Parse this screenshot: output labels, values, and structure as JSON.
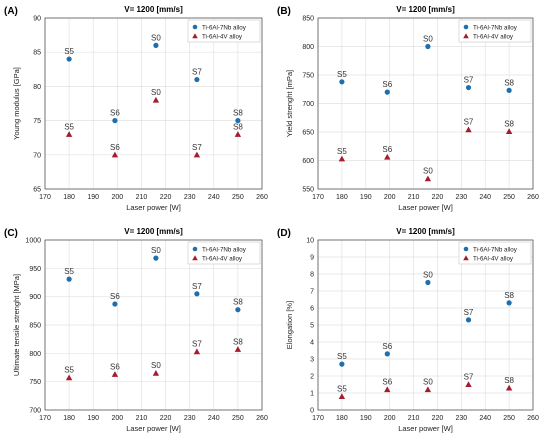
{
  "colors": {
    "nb_series": "#1f6fae",
    "v_series": "#a51c2c",
    "grid": "#e2e2e2",
    "axis": "#555555",
    "text": "#222222"
  },
  "chart_data": [
    {
      "panel_label": "(A)",
      "type": "scatter",
      "title": "V= 1200 [mm/s]",
      "xlabel": "Laser power [W]",
      "ylabel": "Young modulus [GPa]",
      "xlim": [
        170,
        260
      ],
      "ylim": [
        65,
        90
      ],
      "xticks": [
        170,
        180,
        190,
        200,
        210,
        220,
        230,
        240,
        250,
        260
      ],
      "yticks": [
        65,
        70,
        75,
        80,
        85,
        90
      ],
      "grid": true,
      "legend": "top-right",
      "series": [
        {
          "name": "Ti-6Al-7Nb alloy",
          "marker": "circle",
          "points": [
            {
              "x": 180,
              "y": 84,
              "label": "S5"
            },
            {
              "x": 199,
              "y": 75,
              "label": "S6"
            },
            {
              "x": 216,
              "y": 86,
              "label": "S0"
            },
            {
              "x": 233,
              "y": 81,
              "label": "S7"
            },
            {
              "x": 250,
              "y": 75,
              "label": "S8"
            }
          ]
        },
        {
          "name": "Ti-6Al-4V alloy",
          "marker": "triangle",
          "points": [
            {
              "x": 180,
              "y": 73,
              "label": "S5"
            },
            {
              "x": 199,
              "y": 70,
              "label": "S6"
            },
            {
              "x": 216,
              "y": 78,
              "label": "S0"
            },
            {
              "x": 233,
              "y": 70,
              "label": "S7"
            },
            {
              "x": 250,
              "y": 73,
              "label": "S8"
            }
          ]
        }
      ]
    },
    {
      "panel_label": "(B)",
      "type": "scatter",
      "title": "V= 1200 [mm/s]",
      "xlabel": "Laser power [W]",
      "ylabel": "Yield strenght [mPa]",
      "xlim": [
        170,
        260
      ],
      "ylim": [
        550,
        850
      ],
      "xticks": [
        170,
        180,
        190,
        200,
        210,
        220,
        230,
        240,
        250,
        260
      ],
      "yticks": [
        550,
        600,
        650,
        700,
        750,
        800,
        850
      ],
      "grid": true,
      "legend": "top-right",
      "series": [
        {
          "name": "Ti-6Al-7Nb alloy",
          "marker": "circle",
          "points": [
            {
              "x": 180,
              "y": 738,
              "label": "S5"
            },
            {
              "x": 199,
              "y": 720,
              "label": "S6"
            },
            {
              "x": 216,
              "y": 800,
              "label": "S0"
            },
            {
              "x": 233,
              "y": 728,
              "label": "S7"
            },
            {
              "x": 250,
              "y": 723,
              "label": "S8"
            }
          ]
        },
        {
          "name": "Ti-6Al-4V alloy",
          "marker": "triangle",
          "points": [
            {
              "x": 180,
              "y": 603,
              "label": "S5"
            },
            {
              "x": 199,
              "y": 606,
              "label": "S6"
            },
            {
              "x": 216,
              "y": 568,
              "label": "S0"
            },
            {
              "x": 233,
              "y": 654,
              "label": "S7"
            },
            {
              "x": 250,
              "y": 651,
              "label": "S8"
            }
          ]
        }
      ]
    },
    {
      "panel_label": "(C)",
      "type": "scatter",
      "title": "V= 1200 [mm/s]",
      "xlabel": "Laser power [W]",
      "ylabel": "Ultimate tensile strenght [MPa]",
      "xlim": [
        170,
        260
      ],
      "ylim": [
        700,
        1000
      ],
      "xticks": [
        170,
        180,
        190,
        200,
        210,
        220,
        230,
        240,
        250,
        260
      ],
      "yticks": [
        700,
        750,
        800,
        850,
        900,
        950,
        1000
      ],
      "grid": true,
      "legend": "top-right",
      "series": [
        {
          "name": "Ti-6Al-7Nb alloy",
          "marker": "circle",
          "points": [
            {
              "x": 180,
              "y": 931,
              "label": "S5"
            },
            {
              "x": 199,
              "y": 887,
              "label": "S6"
            },
            {
              "x": 216,
              "y": 968,
              "label": "S0"
            },
            {
              "x": 233,
              "y": 905,
              "label": "S7"
            },
            {
              "x": 250,
              "y": 877,
              "label": "S8"
            }
          ]
        },
        {
          "name": "Ti-6Al-4V alloy",
          "marker": "triangle",
          "points": [
            {
              "x": 180,
              "y": 757,
              "label": "S5"
            },
            {
              "x": 199,
              "y": 763,
              "label": "S6"
            },
            {
              "x": 216,
              "y": 765,
              "label": "S0"
            },
            {
              "x": 233,
              "y": 803,
              "label": "S7"
            },
            {
              "x": 250,
              "y": 807,
              "label": "S8"
            }
          ]
        }
      ]
    },
    {
      "panel_label": "(D)",
      "type": "scatter",
      "title": "V= 1200 [mm/s]",
      "xlabel": "Laser power [W]",
      "ylabel": "Elongation [%]",
      "xlim": [
        170,
        260
      ],
      "ylim": [
        0,
        10
      ],
      "xticks": [
        170,
        180,
        190,
        200,
        210,
        220,
        230,
        240,
        250,
        260
      ],
      "yticks": [
        0,
        1,
        2,
        3,
        4,
        5,
        6,
        7,
        8,
        9,
        10
      ],
      "grid": true,
      "legend": "top-right",
      "series": [
        {
          "name": "Ti-6Al-7Nb alloy",
          "marker": "circle",
          "points": [
            {
              "x": 180,
              "y": 2.7,
              "label": "S5"
            },
            {
              "x": 199,
              "y": 3.3,
              "label": "S6"
            },
            {
              "x": 216,
              "y": 7.5,
              "label": "S0"
            },
            {
              "x": 233,
              "y": 5.3,
              "label": "S7"
            },
            {
              "x": 250,
              "y": 6.3,
              "label": "S8"
            }
          ]
        },
        {
          "name": "Ti-6Al-4V alloy",
          "marker": "triangle",
          "points": [
            {
              "x": 180,
              "y": 0.8,
              "label": "S5"
            },
            {
              "x": 199,
              "y": 1.2,
              "label": "S6"
            },
            {
              "x": 216,
              "y": 1.2,
              "label": "S0"
            },
            {
              "x": 233,
              "y": 1.5,
              "label": "S7"
            },
            {
              "x": 250,
              "y": 1.3,
              "label": "S8"
            }
          ]
        }
      ]
    }
  ]
}
